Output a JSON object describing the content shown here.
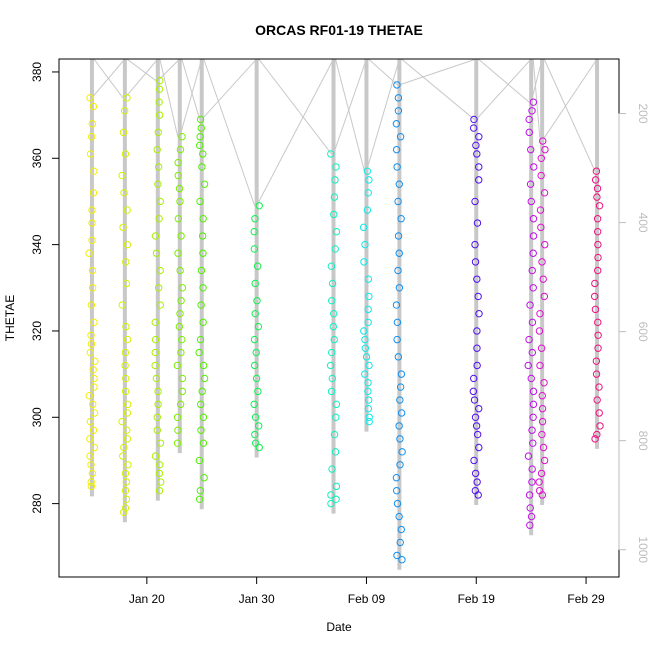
{
  "chart_data": {
    "type": "scatter",
    "title": "ORCAS RF01-19 THETAE",
    "xlabel": "Date",
    "ylabel": "THETAE",
    "xlim": [
      "2016-01-12",
      "2016-03-03"
    ],
    "ylim": [
      263,
      383
    ],
    "x_ticks": [
      {
        "date": "2016-01-20",
        "label": "Jan 20"
      },
      {
        "date": "2016-01-30",
        "label": "Jan 30"
      },
      {
        "date": "2016-02-09",
        "label": "Feb 09"
      },
      {
        "date": "2016-02-19",
        "label": "Feb 19"
      },
      {
        "date": "2016-02-29",
        "label": "Feb 29"
      }
    ],
    "y_ticks": [
      280,
      300,
      320,
      340,
      360,
      380
    ],
    "secondary_axis": {
      "position": "right",
      "reversed": true,
      "lim": [
        1050,
        100
      ],
      "ticks": [
        200,
        400,
        600,
        800,
        1000
      ],
      "color": "#bdbdbd"
    },
    "grid": false,
    "marker": "open-circle",
    "series": [
      {
        "date": "2016-01-15",
        "color": "#f2ef00",
        "values": [
          374,
          372,
          368,
          365,
          361,
          357,
          352,
          348,
          345,
          341,
          338,
          334,
          330,
          326,
          322,
          319,
          317,
          315,
          313,
          311,
          309,
          307,
          305,
          303,
          301,
          299,
          297,
          295,
          293,
          291,
          289,
          287,
          285,
          284
        ]
      },
      {
        "date": "2016-01-18",
        "color": "#d4f200",
        "values": [
          374,
          371,
          366,
          361,
          356,
          352,
          348,
          344,
          340,
          336,
          331,
          326,
          321,
          318,
          315,
          312,
          309,
          306,
          303,
          301,
          299,
          297,
          295,
          293,
          291,
          289,
          287,
          285,
          283,
          281,
          279,
          278
        ]
      },
      {
        "date": "2016-01-21",
        "color": "#a8f000",
        "values": [
          378,
          376,
          373,
          370,
          366,
          362,
          358,
          354,
          350,
          346,
          342,
          338,
          334,
          330,
          326,
          322,
          318,
          315,
          312,
          309,
          306,
          303,
          300,
          297,
          294,
          291,
          289,
          287,
          285,
          283
        ]
      },
      {
        "date": "2016-01-23",
        "color": "#7cee00",
        "values": [
          365,
          362,
          359,
          356,
          353,
          350,
          346,
          342,
          338,
          334,
          330,
          327,
          324,
          321,
          318,
          315,
          312,
          309,
          306,
          303,
          300,
          297,
          294
        ]
      },
      {
        "date": "2016-01-25",
        "color": "#4ff000",
        "values": [
          369,
          367,
          365,
          363,
          361,
          358,
          354,
          350,
          346,
          342,
          338,
          334,
          330,
          326,
          322,
          318,
          315,
          312,
          309,
          306,
          303,
          300,
          297,
          294,
          290,
          286,
          283,
          281
        ]
      },
      {
        "date": "2016-01-30",
        "color": "#10f050",
        "values": [
          349,
          346,
          343,
          339,
          335,
          331,
          327,
          324,
          321,
          318,
          315,
          312,
          309,
          306,
          303,
          300,
          298,
          296,
          294,
          293
        ]
      },
      {
        "date": "2016-02-06",
        "color": "#10f0c0",
        "values": [
          361,
          358,
          355,
          351,
          347,
          343,
          339,
          335,
          331,
          327,
          324,
          321,
          318,
          315,
          312,
          309,
          306,
          303,
          300,
          296,
          292,
          288,
          284,
          282,
          281,
          280
        ]
      },
      {
        "date": "2016-02-09",
        "color": "#10e8e8",
        "values": [
          357,
          355,
          352,
          348,
          344,
          340,
          336,
          332,
          328,
          325,
          322,
          320,
          318,
          316,
          314,
          312,
          310,
          308,
          306,
          304,
          302,
          300,
          299
        ]
      },
      {
        "date": "2016-02-12",
        "color": "#1090f0",
        "values": [
          377,
          374,
          371,
          368,
          365,
          362,
          358,
          354,
          350,
          346,
          342,
          338,
          334,
          330,
          326,
          322,
          318,
          314,
          310,
          307,
          304,
          301,
          298,
          295,
          292,
          289,
          286,
          283,
          280,
          277,
          274,
          271,
          268,
          267
        ]
      },
      {
        "date": "2016-02-19",
        "color": "#5010f0",
        "values": [
          369,
          367,
          365,
          363,
          361,
          358,
          355,
          350,
          345,
          340,
          336,
          332,
          328,
          324,
          320,
          316,
          312,
          309,
          306,
          304,
          302,
          300,
          298,
          296,
          293,
          290,
          287,
          285,
          283,
          282
        ]
      },
      {
        "date": "2016-02-24",
        "color": "#c010e8",
        "values": [
          373,
          371,
          369,
          366,
          362,
          358,
          354,
          350,
          346,
          342,
          338,
          334,
          330,
          326,
          322,
          318,
          315,
          312,
          309,
          306,
          303,
          300,
          297,
          294,
          291,
          288,
          285,
          282,
          279,
          277,
          275
        ]
      },
      {
        "date": "2016-02-25",
        "color": "#e010d0",
        "values": [
          364,
          362,
          360,
          356,
          352,
          348,
          344,
          340,
          336,
          332,
          328,
          324,
          320,
          316,
          312,
          308,
          305,
          302,
          299,
          296,
          293,
          290,
          287,
          285,
          283,
          282
        ]
      },
      {
        "date": "2016-03-01",
        "color": "#f01080",
        "values": [
          357,
          355,
          353,
          351,
          349,
          346,
          343,
          340,
          337,
          334,
          331,
          328,
          325,
          322,
          319,
          316,
          313,
          310,
          307,
          304,
          301,
          298,
          296,
          295
        ]
      }
    ]
  }
}
